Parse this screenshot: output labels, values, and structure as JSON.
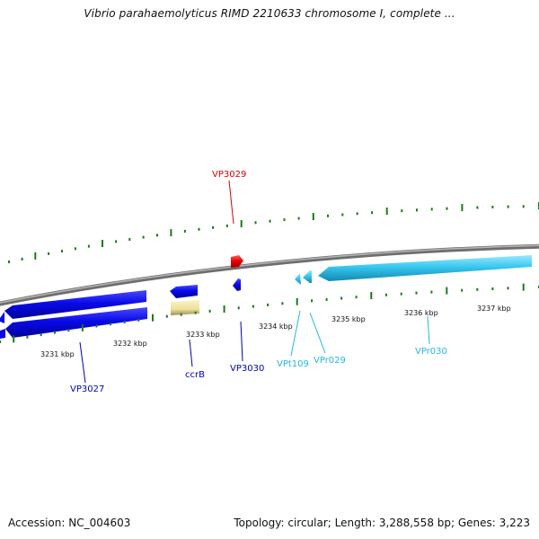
{
  "title": "Vibrio parahaemolyticus RIMD 2210633 chromosome I, complete ...",
  "footer": {
    "accession": "Accession: NC_004603",
    "summary": "Topology: circular; Length: 3,288,558 bp; Genes: 3,223"
  },
  "ticks": [
    "3231 kbp",
    "3232 kbp",
    "3233 kbp",
    "3234 kbp",
    "3235 kbp",
    "3236 kbp",
    "3237 kbp"
  ],
  "genes": [
    {
      "label": "VP3027",
      "color": "#0000b8"
    },
    {
      "label": "ccrB",
      "color": "#0000b8"
    },
    {
      "label": "VP3029",
      "color": "#e00000"
    },
    {
      "label": "VP3030",
      "color": "#0000b8"
    },
    {
      "label": "VPt109",
      "color": "#22b8e0"
    },
    {
      "label": "VPr029",
      "color": "#22b8e0"
    },
    {
      "label": "VPr030",
      "color": "#22b8e0"
    }
  ],
  "colors": {
    "backbone": "#808080",
    "tick_marks": "#1a7a1a",
    "gene_blue": "#0a0ae6",
    "gene_cyan": "#33ccf0",
    "gene_red": "#e60000",
    "gene_yellow": "#f2e6a0"
  }
}
